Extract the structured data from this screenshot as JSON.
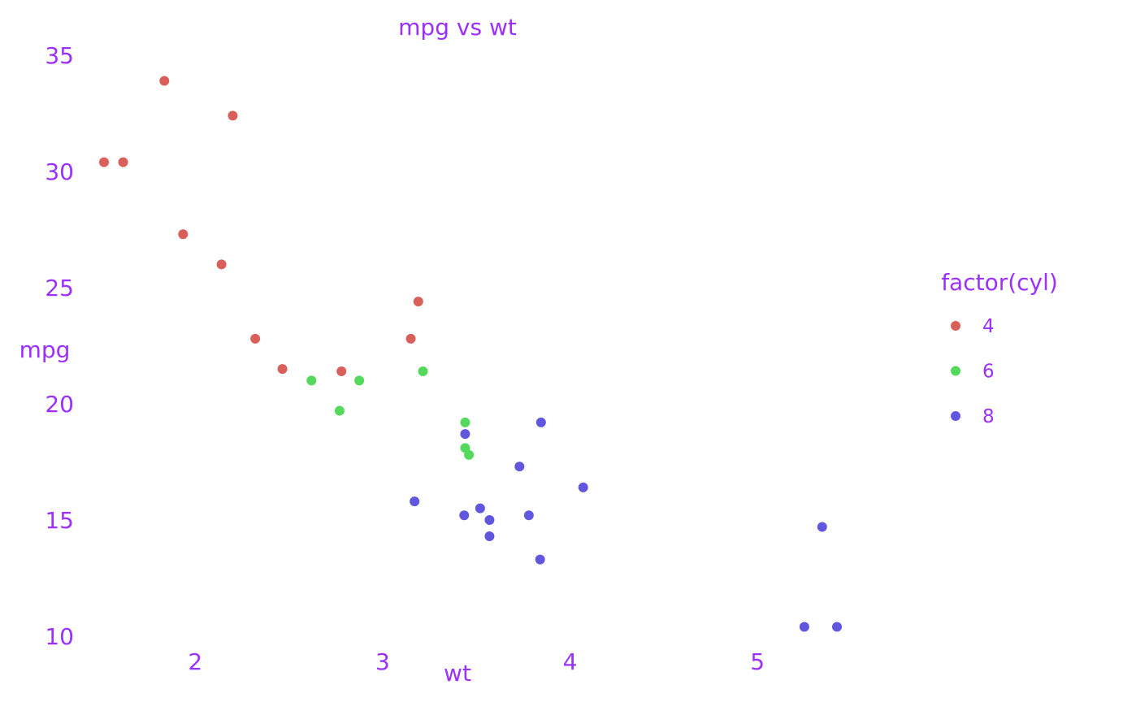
{
  "chart_data": {
    "type": "scatter",
    "title": "mpg vs wt",
    "xlabel": "wt",
    "ylabel": "mpg",
    "x_ticks": [
      2,
      3,
      4,
      5
    ],
    "y_ticks": [
      10,
      15,
      20,
      25,
      30,
      35
    ],
    "xlim": [
      1.513,
      5.424
    ],
    "ylim": [
      10.4,
      33.9
    ],
    "grid": false,
    "text_color": "#9b30ff",
    "legend": {
      "title": "factor(cyl)",
      "position": "right"
    },
    "series": [
      {
        "name": "4",
        "color": "#d9605a",
        "points": [
          {
            "x": 2.32,
            "y": 22.8
          },
          {
            "x": 3.19,
            "y": 24.4
          },
          {
            "x": 3.15,
            "y": 22.8
          },
          {
            "x": 2.2,
            "y": 32.4
          },
          {
            "x": 1.615,
            "y": 30.4
          },
          {
            "x": 1.835,
            "y": 33.9
          },
          {
            "x": 2.465,
            "y": 21.5
          },
          {
            "x": 1.935,
            "y": 27.3
          },
          {
            "x": 2.14,
            "y": 26.0
          },
          {
            "x": 1.513,
            "y": 30.4
          },
          {
            "x": 2.78,
            "y": 21.4
          }
        ]
      },
      {
        "name": "6",
        "color": "#55d95d",
        "points": [
          {
            "x": 2.62,
            "y": 21.0
          },
          {
            "x": 2.875,
            "y": 21.0
          },
          {
            "x": 3.215,
            "y": 21.4
          },
          {
            "x": 3.44,
            "y": 18.1
          },
          {
            "x": 3.44,
            "y": 19.2
          },
          {
            "x": 3.46,
            "y": 17.8
          },
          {
            "x": 2.77,
            "y": 19.7
          }
        ]
      },
      {
        "name": "8",
        "color": "#6156de",
        "points": [
          {
            "x": 3.44,
            "y": 18.7
          },
          {
            "x": 3.57,
            "y": 14.3
          },
          {
            "x": 4.07,
            "y": 16.4
          },
          {
            "x": 3.73,
            "y": 17.3
          },
          {
            "x": 3.78,
            "y": 15.2
          },
          {
            "x": 5.25,
            "y": 10.4
          },
          {
            "x": 5.424,
            "y": 10.4
          },
          {
            "x": 5.345,
            "y": 14.7
          },
          {
            "x": 3.52,
            "y": 15.5
          },
          {
            "x": 3.435,
            "y": 15.2
          },
          {
            "x": 3.84,
            "y": 13.3
          },
          {
            "x": 3.845,
            "y": 19.2
          },
          {
            "x": 3.17,
            "y": 15.8
          },
          {
            "x": 3.57,
            "y": 15.0
          }
        ]
      }
    ]
  }
}
